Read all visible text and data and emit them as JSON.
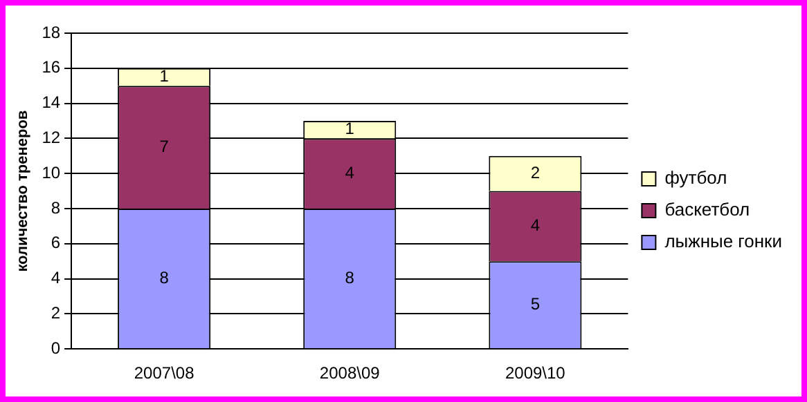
{
  "chart_data": {
    "type": "bar",
    "stacked": true,
    "categories": [
      "2007\\08",
      "2008\\09",
      "2009\\10"
    ],
    "series": [
      {
        "name": "лыжные гонки",
        "color": "#9999ff",
        "values": [
          8,
          8,
          5
        ]
      },
      {
        "name": "баскетбол",
        "color": "#993366",
        "values": [
          7,
          4,
          4
        ]
      },
      {
        "name": "футбол",
        "color": "#ffffcc",
        "values": [
          1,
          1,
          2
        ]
      }
    ],
    "ylabel": "количество тренеров",
    "ylim": [
      0,
      18
    ],
    "yticks": [
      0,
      2,
      4,
      6,
      8,
      10,
      12,
      14,
      16,
      18
    ],
    "grid": "y",
    "legend": "right",
    "data_labels": true
  }
}
